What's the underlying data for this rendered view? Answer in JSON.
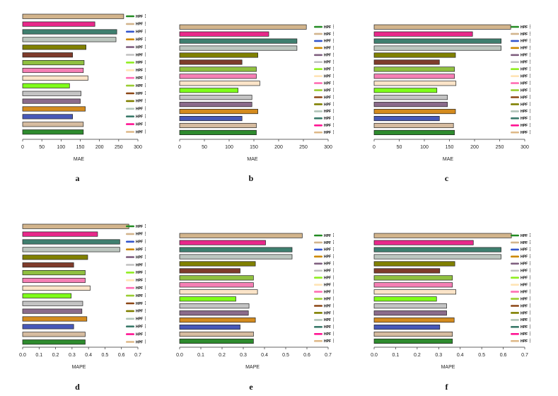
{
  "colors": [
    "#d2b48c",
    "#e8288a",
    "#3f7f6f",
    "#bcc6bf",
    "#808000",
    "#7f3b2b",
    "#90c040",
    "#f57fb4",
    "#fbe4c8",
    "#7fff1a",
    "#c4c4c4",
    "#8b6b8b",
    "#d48b1e",
    "#4758b8",
    "#d6bca0",
    "#2e8b2e"
  ],
  "legend": {
    "label": "HPF",
    "colors": [
      "#228b22",
      "#d2b48c",
      "#3355cc",
      "#cc8800",
      "#806080",
      "#c0c0c0",
      "#90ee20",
      "#ffe4b5",
      "#ff6eb4",
      "#9acd32",
      "#8b4513",
      "#808000",
      "#b0c4b8",
      "#3a7a6a",
      "#ff1493",
      "#deb887"
    ]
  },
  "chart_data": [
    {
      "type": "bar",
      "orientation": "horizontal",
      "panel": "a",
      "xlabel": "MAE",
      "xlim": [
        0,
        300
      ],
      "xticks": [
        0,
        50,
        100,
        150,
        200,
        250,
        300
      ],
      "values": [
        263,
        188,
        245,
        243,
        165,
        130,
        160,
        158,
        170,
        122,
        152,
        150,
        163,
        130,
        158,
        158
      ]
    },
    {
      "type": "bar",
      "orientation": "horizontal",
      "panel": "b",
      "xlabel": "MAE",
      "xlim": [
        0,
        300
      ],
      "xticks": [
        0,
        50,
        100,
        150,
        200,
        250,
        300
      ],
      "values": [
        256,
        180,
        237,
        237,
        158,
        126,
        155,
        155,
        162,
        118,
        146,
        146,
        158,
        126,
        155,
        155
      ]
    },
    {
      "type": "bar",
      "orientation": "horizontal",
      "panel": "c",
      "xlabel": "MAE",
      "xlim": [
        0,
        300
      ],
      "xticks": [
        0,
        50,
        100,
        150,
        200,
        250,
        300
      ],
      "values": [
        272,
        196,
        253,
        253,
        162,
        130,
        160,
        160,
        163,
        125,
        146,
        146,
        162,
        130,
        158,
        160
      ]
    },
    {
      "type": "bar",
      "orientation": "horizontal",
      "panel": "d",
      "xlabel": "MAPE",
      "xlim": [
        0,
        0.7
      ],
      "xticks": [
        "0.0",
        "0.1",
        "0.2",
        "0.3",
        "0.4",
        "0.5",
        "0.6",
        "0.7"
      ],
      "values": [
        0.645,
        0.455,
        0.59,
        0.59,
        0.395,
        0.31,
        0.38,
        0.38,
        0.41,
        0.295,
        0.365,
        0.36,
        0.39,
        0.31,
        0.38,
        0.38
      ]
    },
    {
      "type": "bar",
      "orientation": "horizontal",
      "panel": "e",
      "xlabel": "MAPE",
      "xlim": [
        0,
        0.7
      ],
      "xticks": [
        "0.0",
        "0.1",
        "0.2",
        "0.3",
        "0.4",
        "0.5",
        "0.6",
        "0.7"
      ],
      "values": [
        0.578,
        0.405,
        0.53,
        0.53,
        0.357,
        0.285,
        0.348,
        0.348,
        0.367,
        0.265,
        0.327,
        0.324,
        0.357,
        0.285,
        0.348,
        0.348
      ]
    },
    {
      "type": "bar",
      "orientation": "horizontal",
      "panel": "f",
      "xlabel": "MAPE",
      "xlim": [
        0,
        0.7
      ],
      "xticks": [
        "0.0",
        "0.1",
        "0.2",
        "0.3",
        "0.4",
        "0.5",
        "0.6",
        "0.7"
      ],
      "values": [
        0.638,
        0.461,
        0.59,
        0.59,
        0.375,
        0.305,
        0.364,
        0.364,
        0.38,
        0.29,
        0.337,
        0.337,
        0.372,
        0.305,
        0.364,
        0.364
      ]
    }
  ]
}
